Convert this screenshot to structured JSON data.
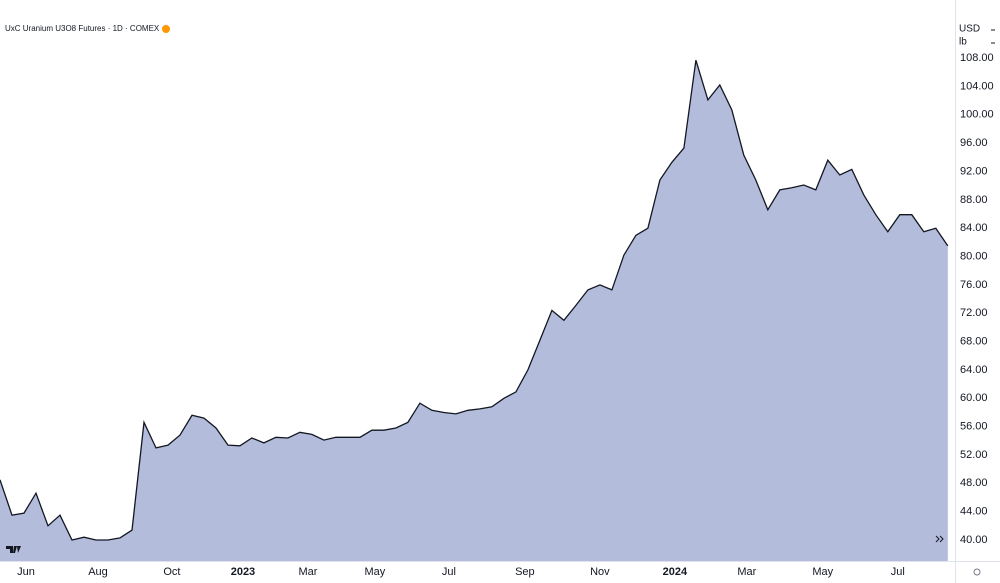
{
  "chart_data": {
    "type": "area",
    "title": "UxC Uranium U3O8 Futures · 1D · COMEX",
    "currency": "USD",
    "unit": "lb",
    "color": "#b3bcda",
    "line_color": "#131722",
    "grid": false,
    "x": [
      0,
      1,
      2,
      3,
      4,
      5,
      6,
      7,
      8,
      9,
      10,
      11,
      12,
      13,
      14,
      15,
      16,
      17,
      18,
      19,
      20,
      21,
      22,
      23,
      24,
      25,
      26,
      27,
      28,
      29,
      30,
      31,
      32,
      33,
      34,
      35,
      36,
      37,
      38,
      39,
      40,
      41,
      42,
      43,
      44,
      45,
      46,
      47,
      48,
      49,
      50,
      51,
      52,
      53,
      54,
      55,
      56,
      57,
      58,
      59,
      60,
      61,
      62,
      63,
      64,
      65,
      66,
      67,
      68,
      69,
      70,
      71,
      72,
      73,
      74,
      75,
      76,
      77,
      78,
      79
    ],
    "values": [
      48.5,
      43.5,
      43.8,
      46.6,
      42,
      43.5,
      40,
      40.4,
      40,
      40,
      40.3,
      41.4,
      56.6,
      53,
      53.4,
      54.8,
      57.6,
      57.2,
      55.8,
      53.4,
      53.3,
      54.4,
      53.7,
      54.5,
      54.4,
      55.2,
      54.9,
      54.1,
      54.5,
      54.5,
      54.5,
      55.5,
      55.5,
      55.8,
      56.6,
      59.3,
      58.3,
      58,
      57.8,
      58.3,
      58.5,
      58.8,
      60,
      60.9,
      64,
      68.2,
      72.4,
      71,
      73.1,
      75.3,
      76,
      75.3,
      80.2,
      83,
      84,
      90.8,
      93.3,
      95.3,
      107.7,
      102.1,
      104.2,
      100.7,
      94.3,
      90.8,
      86.6,
      89.4,
      89.7,
      90.1,
      89.4,
      93.6,
      91.5,
      92.3,
      88.7,
      85.9,
      83.5,
      85.9,
      85.9,
      83.5,
      84,
      81.5
    ],
    "xlim": [
      0,
      79.6
    ],
    "xticks": [
      {
        "value": 2.17,
        "label": "Jun"
      },
      {
        "value": 8.17,
        "label": "Aug"
      },
      {
        "value": 14.33,
        "label": "Oct"
      },
      {
        "value": 20.25,
        "label": "2023"
      },
      {
        "value": 25.67,
        "label": "Mar"
      },
      {
        "value": 31.25,
        "label": "May"
      },
      {
        "value": 37.42,
        "label": "Jul"
      },
      {
        "value": 43.75,
        "label": "Sep"
      },
      {
        "value": 50,
        "label": "Nov"
      },
      {
        "value": 56.25,
        "label": "2024"
      },
      {
        "value": 62.25,
        "label": "Mar"
      },
      {
        "value": 68.58,
        "label": "May"
      },
      {
        "value": 74.83,
        "label": "Jul"
      }
    ],
    "ylim": [
      37.04,
      116.2
    ],
    "yticks": [
      {
        "value": 40,
        "label": "40.00"
      },
      {
        "value": 44,
        "label": "44.00"
      },
      {
        "value": 48,
        "label": "48.00"
      },
      {
        "value": 52,
        "label": "52.00"
      },
      {
        "value": 56,
        "label": "56.00"
      },
      {
        "value": 60,
        "label": "60.00"
      },
      {
        "value": 64,
        "label": "64.00"
      },
      {
        "value": 68,
        "label": "68.00"
      },
      {
        "value": 72,
        "label": "72.00"
      },
      {
        "value": 76,
        "label": "76.00"
      },
      {
        "value": 80,
        "label": "80.00"
      },
      {
        "value": 84,
        "label": "84.00"
      },
      {
        "value": 88,
        "label": "88.00"
      },
      {
        "value": 92,
        "label": "92.00"
      },
      {
        "value": 96,
        "label": "96.00"
      },
      {
        "value": 100,
        "label": "100.00"
      },
      {
        "value": 104,
        "label": "104.00"
      },
      {
        "value": 108,
        "label": "108.00"
      }
    ]
  }
}
